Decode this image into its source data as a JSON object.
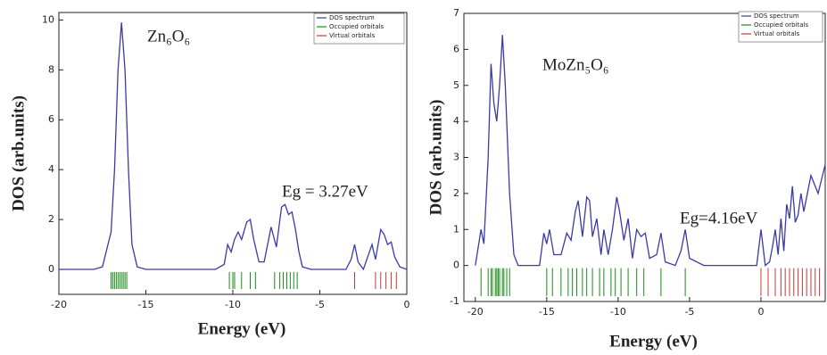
{
  "chart_data": [
    {
      "type": "line",
      "title": "Zn₆O₆",
      "annotation": "Eg = 3.27eV",
      "x_label": "Energy (eV)",
      "y_label": "DOS (arb.units)",
      "xlim": [
        -20,
        0
      ],
      "ylim": [
        -1,
        10.3
      ],
      "xticks": [
        -20,
        -15,
        -10,
        -5,
        0
      ],
      "yticks": [
        0,
        2,
        4,
        6,
        8,
        10
      ],
      "series": [
        {
          "name": "DOS spectrum",
          "color": "#3a3aa8",
          "x": [
            -20,
            -18,
            -17.5,
            -17,
            -16.8,
            -16.6,
            -16.4,
            -16.2,
            -16,
            -15.8,
            -15.5,
            -15,
            -11,
            -10.5,
            -10.3,
            -10.1,
            -9.9,
            -9.7,
            -9.5,
            -9.2,
            -9,
            -8.8,
            -8.5,
            -8.2,
            -7.8,
            -7.5,
            -7.2,
            -7,
            -6.8,
            -6.6,
            -6.4,
            -6.2,
            -6,
            -5.5,
            -3.5,
            -3.2,
            -3,
            -2.8,
            -2.5,
            -2.2,
            -2,
            -1.8,
            -1.5,
            -1.3,
            -1.1,
            -0.9,
            -0.7,
            -0.4,
            0
          ],
          "values": [
            0,
            0,
            0.1,
            1.5,
            4,
            8,
            9.9,
            8,
            4,
            1,
            0.1,
            0,
            0,
            0.2,
            1,
            0.7,
            1.2,
            1.5,
            1.2,
            1.9,
            2,
            1.2,
            0.3,
            0.3,
            1.7,
            0.9,
            2.5,
            2.6,
            2.2,
            2.3,
            1.6,
            0.7,
            0.1,
            0,
            0,
            0.4,
            1,
            0.3,
            0,
            0.6,
            1,
            0.4,
            1.6,
            1.4,
            1,
            1.1,
            0.5,
            0.1,
            0
          ]
        },
        {
          "name": "Occupied orbitals",
          "color": "#1a8a1a",
          "x": [
            -17,
            -16.9,
            -16.8,
            -16.7,
            -16.6,
            -16.5,
            -16.4,
            -16.3,
            -16.2,
            -16.1,
            -10.2,
            -10,
            -9.9,
            -9.5,
            -9,
            -8.7,
            -7.6,
            -7.3,
            -7.1,
            -6.9,
            -6.7,
            -6.5,
            -6.3
          ]
        },
        {
          "name": "Virtual orbitals",
          "color": "#c43a3a",
          "x": [
            -3,
            -1.8,
            -1.5,
            -1.2,
            -0.9,
            -0.6
          ]
        }
      ]
    },
    {
      "type": "line",
      "title": "MoZn₅O₆",
      "annotation": "Eg=4.16eV",
      "x_label": "Energy (eV)",
      "y_label": "DOS (arb.units)",
      "xlim": [
        -20.8,
        4.5
      ],
      "ylim": [
        -1,
        7
      ],
      "xticks": [
        -20,
        -15,
        -10,
        -5,
        0
      ],
      "yticks": [
        -1,
        0,
        1,
        2,
        3,
        4,
        5,
        6,
        7
      ],
      "series": [
        {
          "name": "DOS spectrum",
          "color": "#3a3aa8",
          "x": [
            -20,
            -19.6,
            -19.4,
            -19.1,
            -18.9,
            -18.7,
            -18.5,
            -18.3,
            -18.1,
            -17.9,
            -17.6,
            -17.3,
            -17,
            -15.5,
            -15.2,
            -15,
            -14.8,
            -14.5,
            -14,
            -13.6,
            -13.3,
            -13,
            -12.8,
            -12.5,
            -12.2,
            -12,
            -11.8,
            -11.5,
            -11.2,
            -11,
            -10.7,
            -10.4,
            -10.1,
            -9.9,
            -9.6,
            -9.3,
            -9,
            -8.7,
            -8.4,
            -8.1,
            -7.8,
            -7.3,
            -7,
            -6.7,
            -6,
            -5.6,
            -5.3,
            -5,
            -4,
            -0.3,
            0,
            0.3,
            0.6,
            0.8,
            1,
            1.2,
            1.4,
            1.6,
            1.8,
            2,
            2.2,
            2.4,
            2.6,
            2.8,
            3,
            3.5,
            4,
            4.5
          ],
          "values": [
            0,
            1,
            0.6,
            3,
            5.6,
            4.5,
            4,
            5,
            6.4,
            5,
            2,
            0.3,
            0,
            0,
            0.9,
            0.6,
            1,
            0.3,
            0.3,
            0.9,
            0.7,
            1.5,
            1.8,
            0.8,
            1.9,
            1.8,
            0.8,
            1.3,
            0.3,
            1,
            0.3,
            1,
            1.9,
            1.5,
            0.7,
            1.3,
            0.2,
            1,
            0.8,
            0.9,
            0.2,
            0.3,
            0.9,
            0.1,
            0,
            0.4,
            1,
            0.2,
            0,
            0,
            1,
            0,
            0.1,
            0.5,
            1,
            0.3,
            1.3,
            0.4,
            1.7,
            1.3,
            2.2,
            1.2,
            1.4,
            2,
            1.5,
            2.5,
            2,
            2.8
          ]
        },
        {
          "name": "Occupied orbitals",
          "color": "#1a8a1a",
          "x": [
            -19.6,
            -19.1,
            -18.9,
            -18.8,
            -18.6,
            -18.5,
            -18.4,
            -18.3,
            -18.1,
            -18,
            -17.8,
            -17.6,
            -15,
            -14.6,
            -14,
            -13.5,
            -13.2,
            -12.9,
            -12.5,
            -12.2,
            -11.8,
            -11.3,
            -11,
            -10.5,
            -10.2,
            -9.8,
            -9.3,
            -8.7,
            -8.2,
            -7,
            -5.3
          ]
        },
        {
          "name": "Virtual orbitals",
          "color": "#c43a3a",
          "x": [
            0,
            0.5,
            1,
            1.4,
            1.7,
            2,
            2.3,
            2.6,
            2.9,
            3.2,
            3.5,
            3.8,
            4.1
          ]
        }
      ]
    }
  ]
}
